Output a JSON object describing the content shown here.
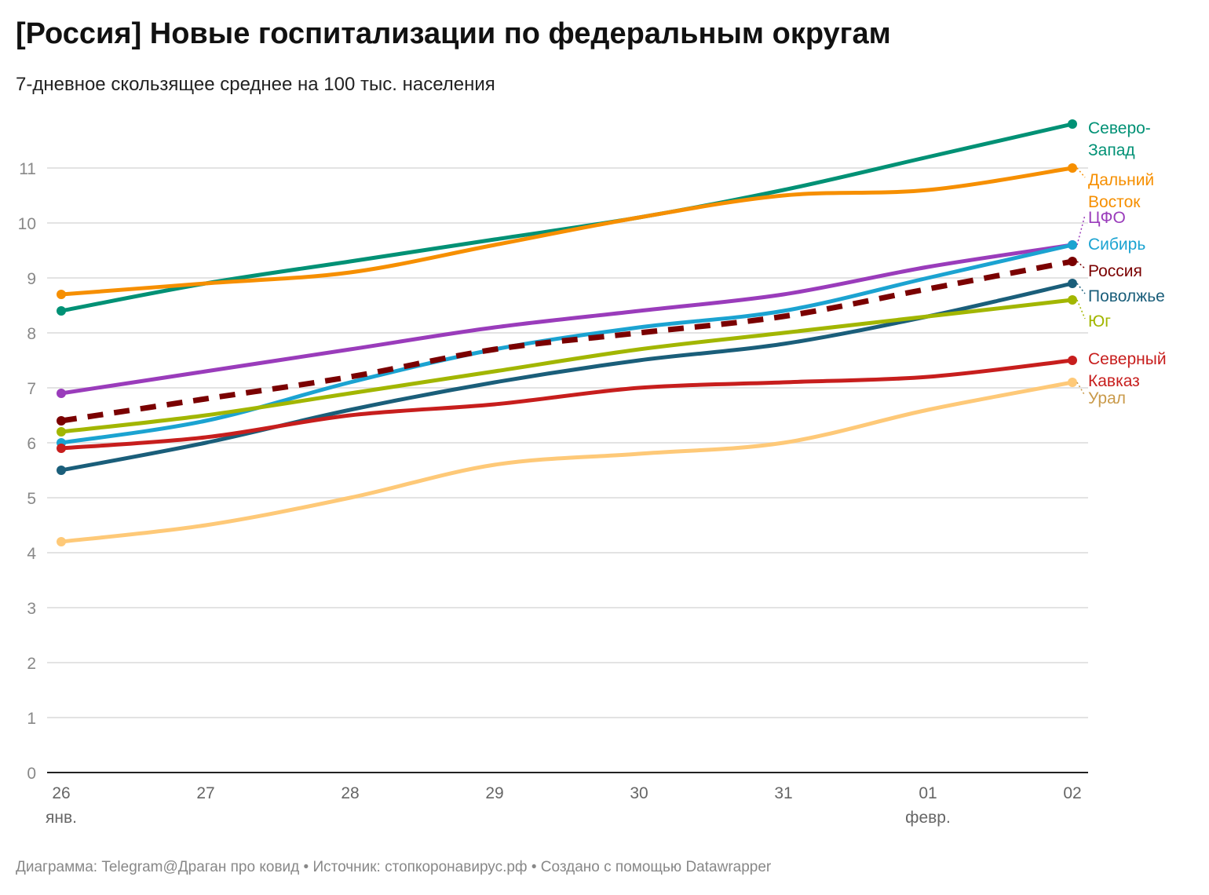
{
  "title": "[Россия] Новые госпитализации по федеральным округам",
  "subtitle": "7-дневное скользящее среднее на 100 тыс. населения",
  "footer": "Диаграмма: Telegram@Драган про ковид • Источник: стопкоронавирус.рф • Создано с помощью Datawrapper",
  "chart_data": {
    "type": "line",
    "title": "[Россия] Новые госпитализации по федеральным округам",
    "subtitle": "7-дневное скользящее среднее на 100 тыс. населения",
    "x": [
      "26",
      "27",
      "28",
      "29",
      "30",
      "31",
      "01",
      "02"
    ],
    "x_sublabels": {
      "0": "янв.",
      "6": "февр."
    },
    "ylim": [
      0,
      11.8
    ],
    "yticks": [
      0,
      1,
      2,
      3,
      4,
      5,
      6,
      7,
      8,
      9,
      10,
      11
    ],
    "grid": true,
    "legend": "direct labels at line ends (right)",
    "series": [
      {
        "name": "Северо-Запад",
        "label_lines": [
          "Северо-",
          "Запад"
        ],
        "color": "#009175",
        "values": [
          8.4,
          8.9,
          9.3,
          9.7,
          10.1,
          10.6,
          11.2,
          11.8
        ]
      },
      {
        "name": "Дальний Восток",
        "label_lines": [
          "Дальний",
          "Восток"
        ],
        "color": "#f68f00",
        "values": [
          8.7,
          8.9,
          9.1,
          9.6,
          10.1,
          10.5,
          10.6,
          11.0
        ]
      },
      {
        "name": "ЦФО",
        "label_lines": [
          "ЦФО"
        ],
        "color": "#9a3cbb",
        "values": [
          6.9,
          7.3,
          7.7,
          8.1,
          8.4,
          8.7,
          9.2,
          9.6
        ]
      },
      {
        "name": "Сибирь",
        "label_lines": [
          "Сибирь"
        ],
        "color": "#1ba3d1",
        "values": [
          6.0,
          6.4,
          7.1,
          7.7,
          8.1,
          8.4,
          9.0,
          9.6
        ]
      },
      {
        "name": "Россия",
        "label_lines": [
          "Россия"
        ],
        "color": "#7a0000",
        "dashed": true,
        "values": [
          6.4,
          6.8,
          7.2,
          7.7,
          8.0,
          8.3,
          8.8,
          9.3
        ]
      },
      {
        "name": "Поволжье",
        "label_lines": [
          "Поволжье"
        ],
        "color": "#1a5e7a",
        "values": [
          5.5,
          6.0,
          6.6,
          7.1,
          7.5,
          7.8,
          8.3,
          8.9
        ]
      },
      {
        "name": "Юг",
        "label_lines": [
          "Юг"
        ],
        "color": "#a2b600",
        "values": [
          6.2,
          6.5,
          6.9,
          7.3,
          7.7,
          8.0,
          8.3,
          8.6
        ]
      },
      {
        "name": "Северный Кавказ",
        "label_lines": [
          "Северный",
          "Кавказ"
        ],
        "color": "#c71e1d",
        "values": [
          5.9,
          6.1,
          6.5,
          6.7,
          7.0,
          7.1,
          7.2,
          7.5
        ]
      },
      {
        "name": "Урал",
        "label_lines": [
          "Урал"
        ],
        "color": "#fec978",
        "label_color": "#c99a4a",
        "values": [
          4.2,
          4.5,
          5.0,
          5.6,
          5.8,
          6.0,
          6.6,
          7.1
        ]
      }
    ]
  }
}
